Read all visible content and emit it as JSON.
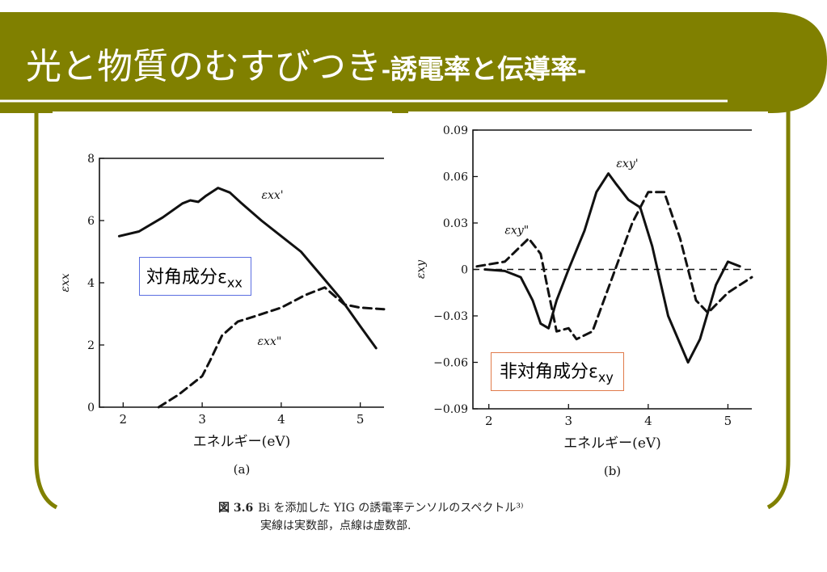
{
  "slide": {
    "title_main": "光と物質のむすびつき",
    "title_sub": "-誘電率と伝導率-",
    "colors": {
      "accent": "#808000",
      "line": "#ffffff"
    }
  },
  "annotations": {
    "diagonal": {
      "text": "対角成分ε",
      "sub": "xx",
      "border": "#5b6ee1"
    },
    "offdiagonal": {
      "text": "非対角成分ε",
      "sub": "xy",
      "border": "#e07b4b"
    }
  },
  "caption": {
    "fig_label": "図 3.6",
    "line1": "Bi を添加した YIG の誘電率テンソルのスペクトル³⁾",
    "line2": "実線は実数部，点線は虚数部."
  },
  "chart_data": [
    {
      "type": "line",
      "panel_label": "(a)",
      "xlabel": "エネルギー(eV)",
      "ylabel": "εxx",
      "xlim": [
        1.7,
        5.3
      ],
      "ylim": [
        0,
        8
      ],
      "xticks": [
        2,
        3,
        4,
        5
      ],
      "yticks": [
        0,
        2,
        4,
        6,
        8
      ],
      "series": [
        {
          "name": "εxx'",
          "style": "solid",
          "x": [
            1.95,
            2.2,
            2.5,
            2.75,
            2.85,
            2.95,
            3.05,
            3.2,
            3.35,
            3.5,
            3.75,
            4.0,
            4.25,
            4.5,
            4.75,
            5.0,
            5.2
          ],
          "y": [
            5.5,
            5.65,
            6.1,
            6.55,
            6.65,
            6.6,
            6.8,
            7.05,
            6.9,
            6.55,
            6.0,
            5.5,
            5.0,
            4.25,
            3.5,
            2.6,
            1.9
          ]
        },
        {
          "name": "εxx\"",
          "style": "dashed",
          "x": [
            2.45,
            2.7,
            2.9,
            3.0,
            3.1,
            3.25,
            3.45,
            3.7,
            4.0,
            4.3,
            4.55,
            4.8,
            5.0,
            5.3
          ],
          "y": [
            0.0,
            0.4,
            0.8,
            1.0,
            1.5,
            2.3,
            2.75,
            2.95,
            3.2,
            3.6,
            3.85,
            3.3,
            3.2,
            3.15
          ]
        }
      ]
    },
    {
      "type": "line",
      "panel_label": "(b)",
      "xlabel": "エネルギー(eV)",
      "ylabel": "εxy",
      "xlim": [
        1.8,
        5.3
      ],
      "ylim": [
        -0.09,
        0.09
      ],
      "xticks": [
        2,
        3,
        4,
        5
      ],
      "yticks": [
        -0.09,
        -0.06,
        -0.03,
        0,
        0.03,
        0.06,
        0.09
      ],
      "ytick_labels": [
        "-0.09",
        "-0.06",
        "-0.03",
        "0",
        "0.03",
        "0.06",
        "0.09"
      ],
      "series": [
        {
          "name": "εxy'",
          "style": "solid",
          "x": [
            1.95,
            2.2,
            2.4,
            2.55,
            2.65,
            2.75,
            2.85,
            3.0,
            3.2,
            3.35,
            3.5,
            3.6,
            3.75,
            3.9,
            4.05,
            4.25,
            4.5,
            4.65,
            4.85,
            5.0,
            5.15
          ],
          "y": [
            0.0,
            -0.001,
            -0.005,
            -0.02,
            -0.035,
            -0.038,
            -0.02,
            0.0,
            0.025,
            0.05,
            0.062,
            0.055,
            0.045,
            0.04,
            0.015,
            -0.03,
            -0.06,
            -0.045,
            -0.01,
            0.005,
            0.002
          ]
        },
        {
          "name": "εxy\"",
          "style": "dashed",
          "x": [
            1.85,
            2.2,
            2.4,
            2.5,
            2.65,
            2.75,
            2.85,
            3.0,
            3.1,
            3.3,
            3.55,
            3.8,
            4.0,
            4.2,
            4.4,
            4.6,
            4.75,
            5.0,
            5.3
          ],
          "y": [
            0.002,
            0.005,
            0.015,
            0.02,
            0.01,
            -0.015,
            -0.04,
            -0.038,
            -0.045,
            -0.04,
            -0.005,
            0.03,
            0.05,
            0.05,
            0.02,
            -0.02,
            -0.028,
            -0.015,
            -0.005
          ]
        },
        {
          "name": "",
          "style": "dashed-zero",
          "x": [
            1.8,
            5.3
          ],
          "y": [
            0,
            0
          ]
        }
      ]
    }
  ]
}
